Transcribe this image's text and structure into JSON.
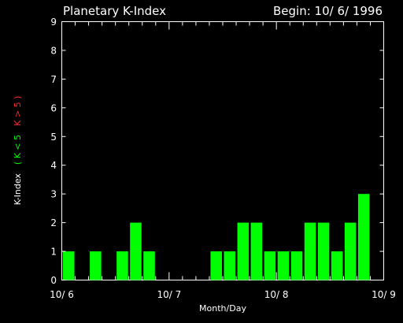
{
  "chart_data": {
    "type": "bar",
    "title": "Planetary K-Index",
    "subtitle": "Begin: 10/ 6/ 1996",
    "xlabel": "Month/Day",
    "ylabel_parts": [
      {
        "text": "K-Index",
        "color": "#ffffff"
      },
      {
        "text": "( K < 5",
        "color": "#00ff00"
      },
      {
        "text": "K > 5 )",
        "color": "#ff2a2a"
      }
    ],
    "ylim": [
      0,
      9
    ],
    "yticks": [
      0,
      1,
      2,
      3,
      4,
      5,
      6,
      7,
      8,
      9
    ],
    "xlim": [
      0,
      24
    ],
    "xticks": [
      {
        "value": 0,
        "label": "10/ 6"
      },
      {
        "value": 8,
        "label": "10/ 7"
      },
      {
        "value": 16,
        "label": "10/ 8"
      },
      {
        "value": 24,
        "label": "10/ 9"
      }
    ],
    "bar_color_low": "#00ff00",
    "bar_color_high": "#ff0000",
    "interval_hours": 3,
    "values": [
      1,
      0,
      1,
      0,
      1,
      2,
      1,
      0,
      0,
      0,
      0,
      1,
      1,
      2,
      2,
      1,
      1,
      1,
      2,
      2,
      1,
      2,
      3,
      0
    ]
  }
}
